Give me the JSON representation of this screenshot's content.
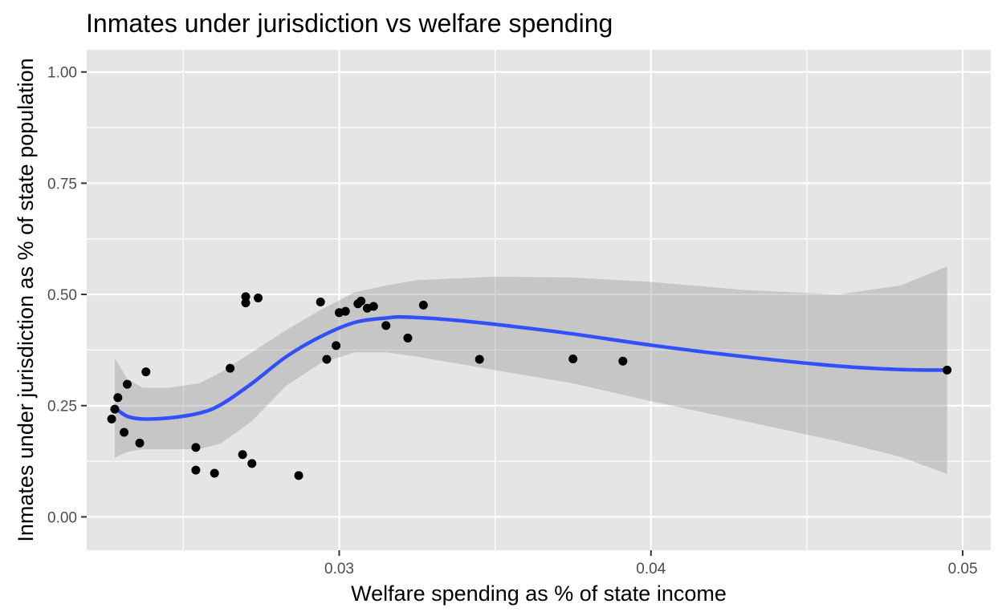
{
  "chart_data": {
    "type": "scatter",
    "title": "Inmates under jurisdiction vs welfare spending",
    "xlabel": "Welfare spending as % of state income",
    "ylabel": "Inmates under jurisdiction as % of state population",
    "xlim": [
      0.0219,
      0.0509
    ],
    "ylim": [
      -0.075,
      1.05
    ],
    "x_ticks": [
      {
        "value": 0.03,
        "label": "0.03"
      },
      {
        "value": 0.04,
        "label": "0.04"
      },
      {
        "value": 0.05,
        "label": "0.05"
      }
    ],
    "x_minor_ticks": [
      0.025,
      0.035,
      0.045
    ],
    "y_ticks": [
      {
        "value": 0.0,
        "label": "0.00"
      },
      {
        "value": 0.25,
        "label": "0.25"
      },
      {
        "value": 0.5,
        "label": "0.50"
      },
      {
        "value": 0.75,
        "label": "0.75"
      },
      {
        "value": 1.0,
        "label": "1.00"
      }
    ],
    "y_minor_ticks": [
      0.125,
      0.375,
      0.625,
      0.875
    ],
    "grid": true,
    "colors": {
      "panel": "#e5e5e5",
      "grid": "#ffffff",
      "points": "#000000",
      "smooth_line": "#3050f8",
      "ribbon": "#999999"
    },
    "points": [
      {
        "x": 0.0227,
        "y": 0.22
      },
      {
        "x": 0.0228,
        "y": 0.242
      },
      {
        "x": 0.0229,
        "y": 0.268
      },
      {
        "x": 0.0231,
        "y": 0.19
      },
      {
        "x": 0.0232,
        "y": 0.298
      },
      {
        "x": 0.0236,
        "y": 0.166
      },
      {
        "x": 0.0238,
        "y": 0.326
      },
      {
        "x": 0.0254,
        "y": 0.156
      },
      {
        "x": 0.0254,
        "y": 0.105
      },
      {
        "x": 0.026,
        "y": 0.098
      },
      {
        "x": 0.0265,
        "y": 0.334
      },
      {
        "x": 0.0269,
        "y": 0.14
      },
      {
        "x": 0.027,
        "y": 0.495
      },
      {
        "x": 0.027,
        "y": 0.481
      },
      {
        "x": 0.0272,
        "y": 0.12
      },
      {
        "x": 0.0274,
        "y": 0.492
      },
      {
        "x": 0.0287,
        "y": 0.093
      },
      {
        "x": 0.0294,
        "y": 0.483
      },
      {
        "x": 0.0296,
        "y": 0.354
      },
      {
        "x": 0.0299,
        "y": 0.385
      },
      {
        "x": 0.03,
        "y": 0.459
      },
      {
        "x": 0.0302,
        "y": 0.462
      },
      {
        "x": 0.0306,
        "y": 0.479
      },
      {
        "x": 0.0307,
        "y": 0.485
      },
      {
        "x": 0.0309,
        "y": 0.469
      },
      {
        "x": 0.0311,
        "y": 0.473
      },
      {
        "x": 0.0315,
        "y": 0.43
      },
      {
        "x": 0.0322,
        "y": 0.402
      },
      {
        "x": 0.0327,
        "y": 0.476
      },
      {
        "x": 0.0345,
        "y": 0.354
      },
      {
        "x": 0.0375,
        "y": 0.355
      },
      {
        "x": 0.0391,
        "y": 0.35
      },
      {
        "x": 0.0495,
        "y": 0.33
      }
    ],
    "smooth": {
      "method": "loess",
      "fit": [
        {
          "x": 0.0228,
          "y": 0.245
        },
        {
          "x": 0.0232,
          "y": 0.226
        },
        {
          "x": 0.0237,
          "y": 0.22
        },
        {
          "x": 0.0245,
          "y": 0.222
        },
        {
          "x": 0.0255,
          "y": 0.233
        },
        {
          "x": 0.0262,
          "y": 0.252
        },
        {
          "x": 0.0272,
          "y": 0.3
        },
        {
          "x": 0.0283,
          "y": 0.36
        },
        {
          "x": 0.0294,
          "y": 0.405
        },
        {
          "x": 0.0305,
          "y": 0.437
        },
        {
          "x": 0.0315,
          "y": 0.447
        },
        {
          "x": 0.0322,
          "y": 0.449
        },
        {
          "x": 0.034,
          "y": 0.44
        },
        {
          "x": 0.037,
          "y": 0.416
        },
        {
          "x": 0.04,
          "y": 0.386
        },
        {
          "x": 0.043,
          "y": 0.36
        },
        {
          "x": 0.046,
          "y": 0.339
        },
        {
          "x": 0.048,
          "y": 0.331
        },
        {
          "x": 0.0495,
          "y": 0.33
        }
      ],
      "upper": [
        {
          "x": 0.0228,
          "y": 0.357
        },
        {
          "x": 0.0232,
          "y": 0.31
        },
        {
          "x": 0.0237,
          "y": 0.29
        },
        {
          "x": 0.0245,
          "y": 0.29
        },
        {
          "x": 0.0255,
          "y": 0.3
        },
        {
          "x": 0.0262,
          "y": 0.325
        },
        {
          "x": 0.0272,
          "y": 0.37
        },
        {
          "x": 0.0283,
          "y": 0.42
        },
        {
          "x": 0.0294,
          "y": 0.465
        },
        {
          "x": 0.0305,
          "y": 0.505
        },
        {
          "x": 0.0315,
          "y": 0.52
        },
        {
          "x": 0.0325,
          "y": 0.532
        },
        {
          "x": 0.035,
          "y": 0.54
        },
        {
          "x": 0.0375,
          "y": 0.538
        },
        {
          "x": 0.04,
          "y": 0.528
        },
        {
          "x": 0.043,
          "y": 0.51
        },
        {
          "x": 0.046,
          "y": 0.5
        },
        {
          "x": 0.048,
          "y": 0.52
        },
        {
          "x": 0.0495,
          "y": 0.563
        }
      ],
      "lower": [
        {
          "x": 0.0228,
          "y": 0.133
        },
        {
          "x": 0.0232,
          "y": 0.146
        },
        {
          "x": 0.0237,
          "y": 0.152
        },
        {
          "x": 0.0245,
          "y": 0.152
        },
        {
          "x": 0.0255,
          "y": 0.152
        },
        {
          "x": 0.0262,
          "y": 0.165
        },
        {
          "x": 0.0272,
          "y": 0.215
        },
        {
          "x": 0.0283,
          "y": 0.295
        },
        {
          "x": 0.0294,
          "y": 0.345
        },
        {
          "x": 0.0305,
          "y": 0.37
        },
        {
          "x": 0.0315,
          "y": 0.37
        },
        {
          "x": 0.0325,
          "y": 0.36
        },
        {
          "x": 0.035,
          "y": 0.33
        },
        {
          "x": 0.0375,
          "y": 0.3
        },
        {
          "x": 0.04,
          "y": 0.26
        },
        {
          "x": 0.043,
          "y": 0.215
        },
        {
          "x": 0.046,
          "y": 0.17
        },
        {
          "x": 0.048,
          "y": 0.135
        },
        {
          "x": 0.0495,
          "y": 0.097
        }
      ]
    }
  }
}
